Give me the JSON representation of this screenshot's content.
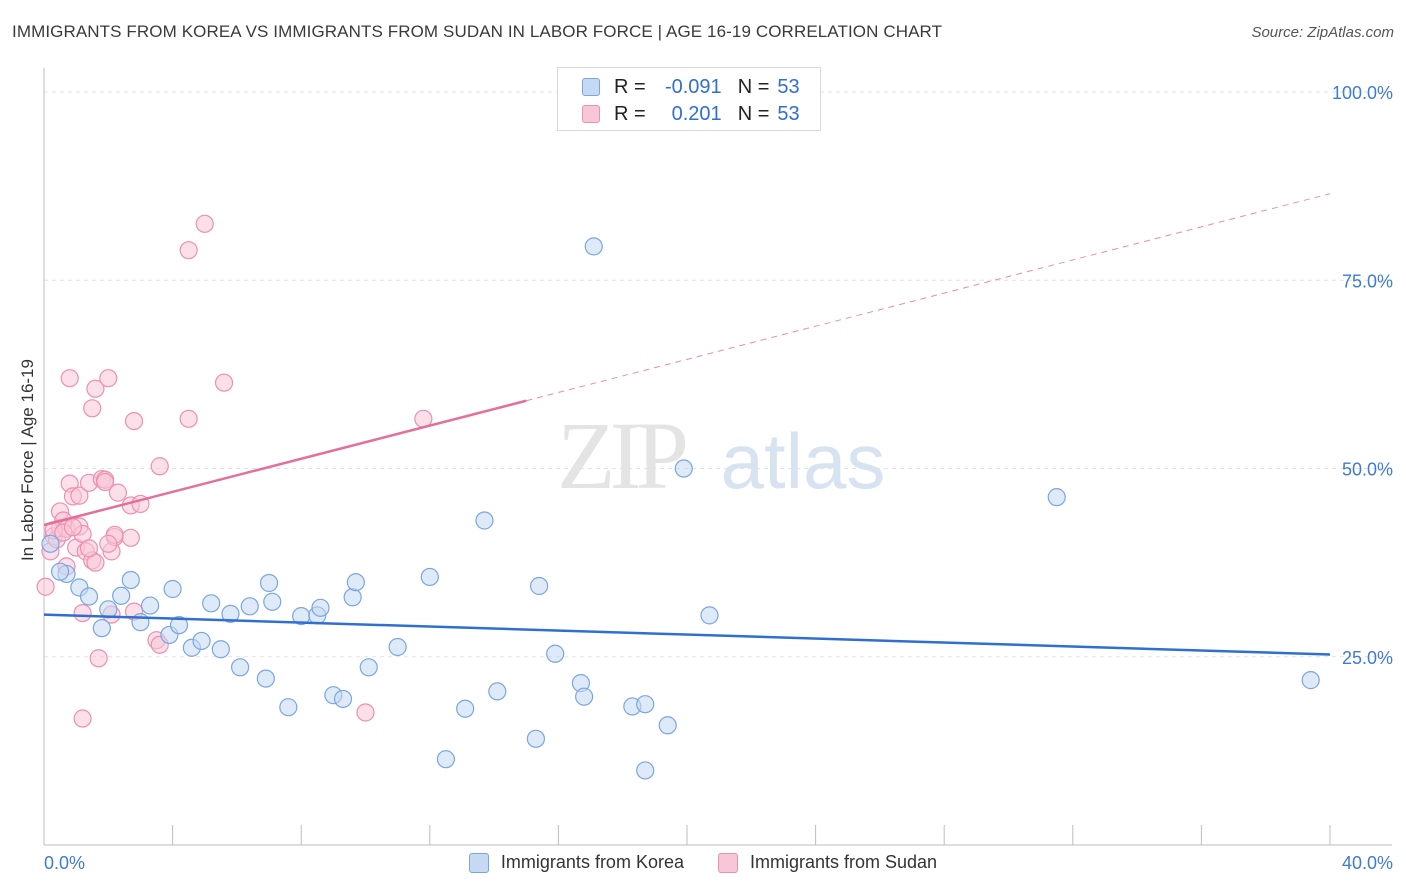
{
  "header": {
    "title": "IMMIGRANTS FROM KOREA VS IMMIGRANTS FROM SUDAN IN LABOR FORCE | AGE 16-19 CORRELATION CHART",
    "source": "Source: ZipAtlas.com"
  },
  "watermark": {
    "zip": "ZIP",
    "atlas": "atlas"
  },
  "legend": {
    "r_label": "R =",
    "n_label": "N =",
    "rows": [
      {
        "name": "korea",
        "r": "-0.091",
        "n": "53",
        "color": "#7aa6e0",
        "fill": "#c5d9f3"
      },
      {
        "name": "sudan",
        "r": " 0.201",
        "n": "53",
        "color": "#ee8fb0",
        "fill": "#f8c7d7"
      }
    ]
  },
  "chart_data": {
    "type": "scatter",
    "title": "IMMIGRANTS FROM KOREA VS IMMIGRANTS FROM SUDAN IN LABOR FORCE | AGE 16-19 CORRELATION CHART",
    "xlabel": "",
    "ylabel": "In Labor Force | Age 16-19",
    "xlim": [
      0,
      40
    ],
    "ylim": [
      0,
      102
    ],
    "x_tick_labels": [
      "0.0%",
      "40.0%"
    ],
    "y_ticks": [
      25,
      50,
      75,
      100
    ],
    "y_tick_labels": [
      "25.0%",
      "50.0%",
      "75.0%",
      "100.0%"
    ],
    "legend_position": "top-center",
    "series": [
      {
        "name": "Immigrants from Korea",
        "color": "#7aa6e0",
        "fill": "#c5d9f3",
        "line_color": "#2f6fd0",
        "trend": {
          "x0": 0,
          "y0": 30.6,
          "x1": 40,
          "y1": 25.3,
          "solid_to": 40
        },
        "points": [
          [
            0.2,
            40.0
          ],
          [
            0.7,
            36.0
          ],
          [
            1.1,
            34.2
          ],
          [
            1.4,
            33.0
          ],
          [
            1.8,
            28.8
          ],
          [
            2.0,
            31.3
          ],
          [
            2.4,
            33.1
          ],
          [
            2.7,
            35.2
          ],
          [
            3.0,
            29.6
          ],
          [
            3.3,
            31.8
          ],
          [
            3.9,
            27.9
          ],
          [
            4.0,
            34.0
          ],
          [
            4.2,
            29.2
          ],
          [
            4.6,
            26.2
          ],
          [
            4.9,
            27.1
          ],
          [
            5.2,
            32.1
          ],
          [
            5.5,
            26.0
          ],
          [
            5.8,
            30.7
          ],
          [
            6.1,
            23.6
          ],
          [
            6.4,
            31.7
          ],
          [
            6.9,
            22.1
          ],
          [
            7.0,
            34.8
          ],
          [
            7.1,
            32.3
          ],
          [
            7.6,
            18.3
          ],
          [
            8.0,
            30.4
          ],
          [
            8.5,
            30.5
          ],
          [
            8.6,
            31.5
          ],
          [
            9.0,
            19.9
          ],
          [
            9.3,
            19.4
          ],
          [
            9.6,
            32.9
          ],
          [
            9.7,
            34.9
          ],
          [
            10.1,
            23.6
          ],
          [
            11.0,
            26.3
          ],
          [
            12.0,
            35.6
          ],
          [
            12.5,
            11.4
          ],
          [
            13.1,
            18.1
          ],
          [
            13.7,
            43.1
          ],
          [
            14.1,
            20.4
          ],
          [
            15.4,
            34.4
          ],
          [
            15.3,
            14.1
          ],
          [
            15.9,
            25.4
          ],
          [
            16.7,
            21.5
          ],
          [
            16.8,
            19.7
          ],
          [
            17.1,
            79.5
          ],
          [
            18.3,
            18.4
          ],
          [
            18.7,
            18.7
          ],
          [
            18.7,
            9.9
          ],
          [
            19.4,
            15.9
          ],
          [
            19.9,
            50.0
          ],
          [
            20.7,
            30.5
          ],
          [
            31.5,
            46.2
          ],
          [
            39.4,
            21.9
          ],
          [
            0.5,
            36.3
          ]
        ]
      },
      {
        "name": "Immigrants from Sudan",
        "color": "#ee8fb0",
        "fill": "#f8c7d7",
        "line_color": "#e4709a",
        "trend": {
          "x0": 0,
          "y0": 42.5,
          "x1": 40,
          "y1": 86.5,
          "solid_to": 15
        },
        "points": [
          [
            0.05,
            34.3
          ],
          [
            0.2,
            39.0
          ],
          [
            0.3,
            41.0
          ],
          [
            0.4,
            40.6
          ],
          [
            0.5,
            42.1
          ],
          [
            0.5,
            44.3
          ],
          [
            0.6,
            43.1
          ],
          [
            0.7,
            42.0
          ],
          [
            0.7,
            37.0
          ],
          [
            0.8,
            48.0
          ],
          [
            0.8,
            62.0
          ],
          [
            0.9,
            46.3
          ],
          [
            1.0,
            39.5
          ],
          [
            1.1,
            42.3
          ],
          [
            1.1,
            46.4
          ],
          [
            1.2,
            41.3
          ],
          [
            1.2,
            30.8
          ],
          [
            1.2,
            16.8
          ],
          [
            1.3,
            39.0
          ],
          [
            1.4,
            48.1
          ],
          [
            1.5,
            37.8
          ],
          [
            1.5,
            58.0
          ],
          [
            1.6,
            37.5
          ],
          [
            1.6,
            60.6
          ],
          [
            1.7,
            24.8
          ],
          [
            1.8,
            48.6
          ],
          [
            1.9,
            48.5
          ],
          [
            1.9,
            48.2
          ],
          [
            2.0,
            62.0
          ],
          [
            2.1,
            30.6
          ],
          [
            2.1,
            39.0
          ],
          [
            2.2,
            40.9
          ],
          [
            2.2,
            41.2
          ],
          [
            2.3,
            46.8
          ],
          [
            2.7,
            40.8
          ],
          [
            2.7,
            45.1
          ],
          [
            2.8,
            31.0
          ],
          [
            2.8,
            56.3
          ],
          [
            3.0,
            45.3
          ],
          [
            3.5,
            27.2
          ],
          [
            3.6,
            26.6
          ],
          [
            3.6,
            50.3
          ],
          [
            4.5,
            79.0
          ],
          [
            4.5,
            56.6
          ],
          [
            5.0,
            82.5
          ],
          [
            5.6,
            61.4
          ],
          [
            10.0,
            17.6
          ],
          [
            11.8,
            56.6
          ],
          [
            0.3,
            41.8
          ],
          [
            0.6,
            41.5
          ],
          [
            1.4,
            39.4
          ],
          [
            2.0,
            40.0
          ],
          [
            0.9,
            42.2
          ]
        ]
      }
    ]
  }
}
